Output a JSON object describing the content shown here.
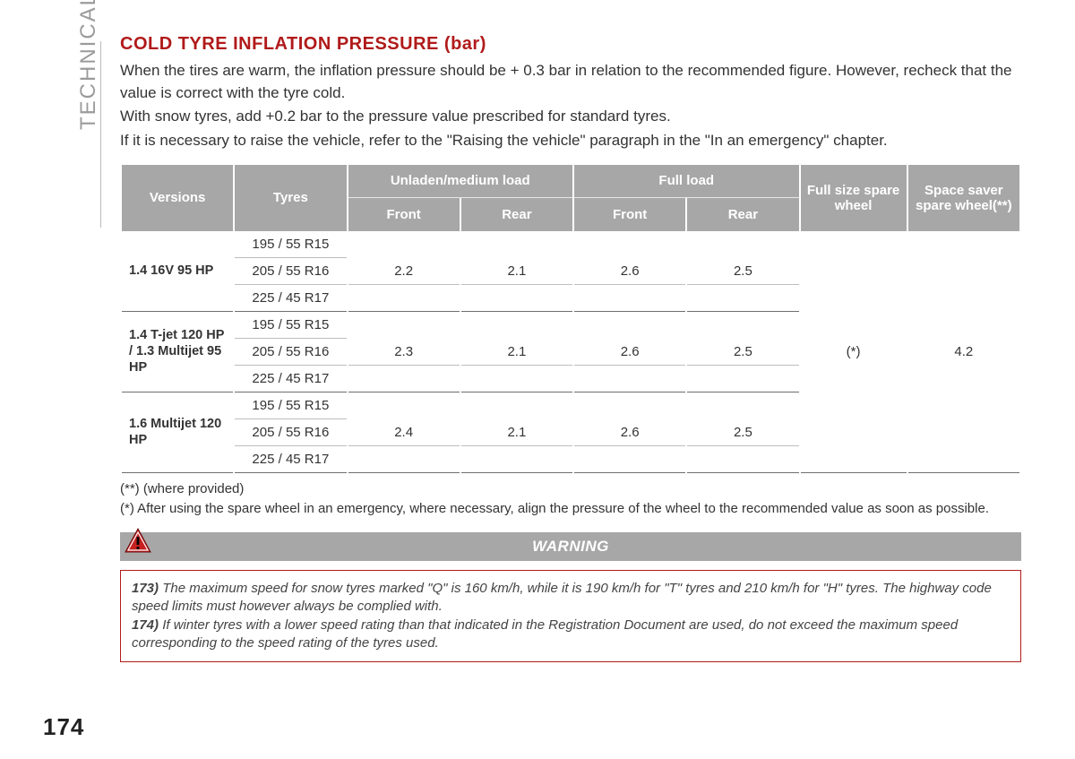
{
  "sidebar": {
    "section_label": "TECHNICAL DATA"
  },
  "title": "COLD TYRE INFLATION PRESSURE (bar)",
  "paragraphs": [
    "When the tires are warm, the inflation pressure should be + 0.3 bar in relation to the recommended figure. However, recheck that the value is correct with the tyre cold.",
    "With snow tyres, add +0.2 bar to the pressure value prescribed for standard tyres.",
    "If it is necessary to raise the vehicle, refer to the \"Raising the vehicle\" paragraph in the \"In an emergency\" chapter."
  ],
  "table": {
    "headers": {
      "versions": "Versions",
      "tyres": "Tyres",
      "unladen_group": "Unladen/medium load",
      "full_group": "Full load",
      "spare_full": "Full size spare wheel",
      "spare_saver": "Space saver spare wheel(**)",
      "front": "Front",
      "rear": "Rear"
    },
    "groups": [
      {
        "version": "1.4 16V 95 HP",
        "tyres": [
          "195 / 55 R15",
          "205 / 55 R16",
          "225 / 45 R17"
        ],
        "unladen_front": "2.2",
        "unladen_rear": "2.1",
        "full_front": "2.6",
        "full_rear": "2.5"
      },
      {
        "version": "1.4 T-jet 120 HP / 1.3 Multijet 95 HP",
        "tyres": [
          "195 / 55 R15",
          "205 / 55 R16",
          "225 / 45 R17"
        ],
        "unladen_front": "2.3",
        "unladen_rear": "2.1",
        "full_front": "2.6",
        "full_rear": "2.5"
      },
      {
        "version": "1.6 Multijet 120 HP",
        "tyres": [
          "195 / 55 R15",
          "205 / 55 R16",
          "225 / 45 R17"
        ],
        "unladen_front": "2.4",
        "unladen_rear": "2.1",
        "full_front": "2.6",
        "full_rear": "2.5"
      }
    ],
    "spare_full_value": "(*)",
    "spare_saver_value": "4.2",
    "col_widths": {
      "versions": 122,
      "tyres": 122,
      "data": 122,
      "spare1": 116,
      "spare2": 122
    }
  },
  "footnotes": [
    "(**) (where provided)",
    "(*) After using the spare wheel in an emergency, where necessary, align the pressure of the wheel to the recommended value as soon as possible."
  ],
  "warning": {
    "label": "WARNING",
    "items": [
      {
        "num": "173)",
        "text": " The maximum speed for snow tyres marked \"Q\" is 160 km/h, while it is 190 km/h for \"T\" tyres and 210 km/h for \"H\" tyres. The highway code speed limits must however always be complied with."
      },
      {
        "num": "174)",
        "text": " If winter tyres with a lower speed rating than that indicated in the Registration Document are used, do not exceed the maximum speed corresponding to the speed rating of the tyres used."
      }
    ]
  },
  "page_number": "174",
  "colors": {
    "accent_red": "#b11a1a",
    "header_grey": "#a7a7a7",
    "text": "#333333",
    "side_grey": "#9b9b9b"
  }
}
